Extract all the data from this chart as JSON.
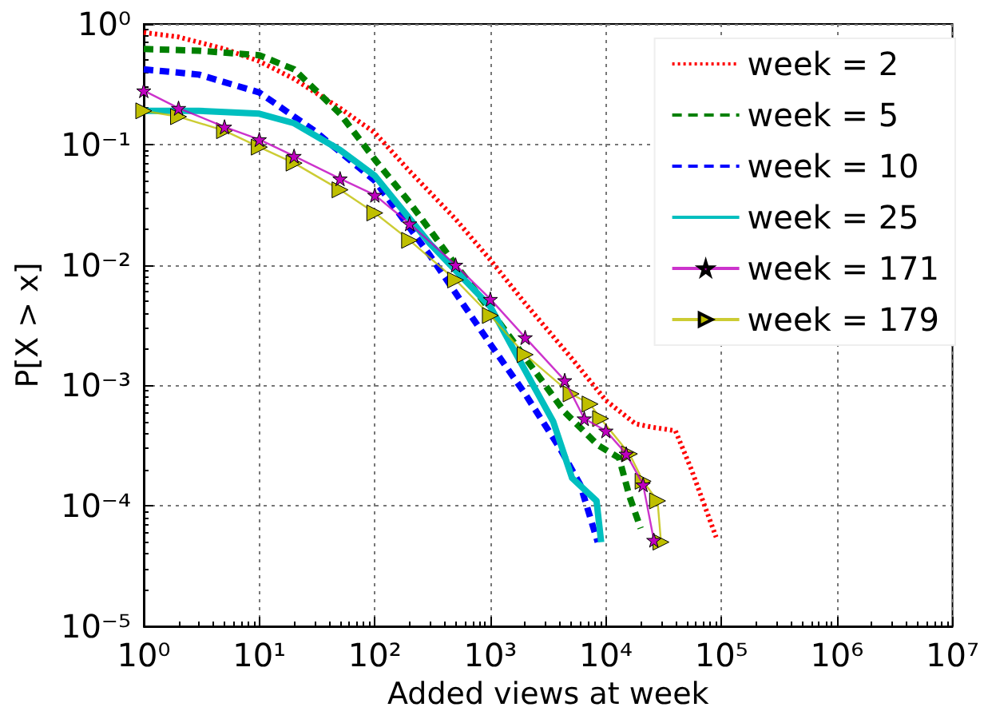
{
  "chart_data": {
    "type": "line",
    "xlabel": "Added views at week",
    "ylabel": "P[X > x]",
    "log": "xy",
    "grid": true,
    "legend": "top right",
    "xlim": [
      1,
      10000000
    ],
    "ylim": [
      1e-05,
      1
    ],
    "xticks": [
      {
        "value": 1,
        "label": "10⁰"
      },
      {
        "value": 10,
        "label": "10¹"
      },
      {
        "value": 100,
        "label": "10²"
      },
      {
        "value": 1000,
        "label": "10³"
      },
      {
        "value": 10000,
        "label": "10⁴"
      },
      {
        "value": 100000,
        "label": "10⁵"
      },
      {
        "value": 1000000,
        "label": "10⁶"
      },
      {
        "value": 10000000,
        "label": "10⁷"
      }
    ],
    "yticks": [
      {
        "value": 1e-05,
        "label": "10⁻⁵"
      },
      {
        "value": 0.0001,
        "label": "10⁻⁴"
      },
      {
        "value": 0.001,
        "label": "10⁻³"
      },
      {
        "value": 0.01,
        "label": "10⁻²"
      },
      {
        "value": 0.1,
        "label": "10⁻¹"
      },
      {
        "value": 1,
        "label": "10⁰"
      }
    ],
    "series": [
      {
        "name": "week = 2",
        "color": "#ff0000",
        "line_style": "dotted",
        "marker": "none",
        "x": [
          1,
          2,
          5,
          10,
          20,
          50,
          100,
          200,
          500,
          1000,
          2000,
          5000,
          10000,
          18000,
          25000,
          40000,
          55000,
          90000
        ],
        "values": [
          0.85,
          0.78,
          0.62,
          0.49,
          0.35,
          0.2,
          0.125,
          0.06,
          0.024,
          0.011,
          0.0048,
          0.0017,
          0.00075,
          0.00048,
          0.00045,
          0.00042,
          0.0002,
          5.5e-05
        ]
      },
      {
        "name": "week = 5",
        "color": "#008000",
        "line_style": "dashed",
        "marker": "none",
        "x": [
          1,
          3,
          10,
          20,
          50,
          100,
          200,
          500,
          1000,
          2000,
          4400,
          8500,
          13000,
          16000,
          20000
        ],
        "values": [
          0.62,
          0.6,
          0.55,
          0.42,
          0.18,
          0.075,
          0.033,
          0.01,
          0.0042,
          0.0017,
          0.0006,
          0.00032,
          0.00025,
          0.00012,
          6.5e-05
        ]
      },
      {
        "name": "week = 10",
        "color": "#0000ff",
        "line_style": "dashed",
        "marker": "none",
        "x": [
          1,
          3,
          10,
          30,
          100,
          300,
          1000,
          2000,
          4000,
          6000,
          8500
        ],
        "values": [
          0.42,
          0.38,
          0.27,
          0.13,
          0.05,
          0.012,
          0.0022,
          0.00085,
          0.0003,
          0.00015,
          5e-05
        ]
      },
      {
        "name": "week = 25",
        "color": "#00bfbf",
        "line_style": "solid",
        "marker": "none",
        "x": [
          1,
          3,
          10,
          20,
          50,
          100,
          300,
          1000,
          1500,
          2500,
          3500,
          5100,
          8300,
          9100
        ],
        "values": [
          0.19,
          0.19,
          0.18,
          0.15,
          0.09,
          0.055,
          0.015,
          0.0045,
          0.0022,
          0.0009,
          0.0005,
          0.00017,
          0.00011,
          5e-05
        ]
      },
      {
        "name": "week = 171",
        "color": "#bf00bf",
        "line_style": "solid",
        "marker": "star",
        "x": [
          1,
          2,
          5,
          10,
          20,
          50,
          100,
          200,
          500,
          1000,
          2000,
          4400,
          6500,
          10000,
          15000,
          21000,
          26000
        ],
        "values": [
          0.28,
          0.2,
          0.14,
          0.11,
          0.08,
          0.052,
          0.038,
          0.022,
          0.01,
          0.0052,
          0.0025,
          0.0011,
          0.00053,
          0.00042,
          0.00027,
          0.00015,
          5.2e-05
        ]
      },
      {
        "name": "week = 179",
        "color": "#bfbf00",
        "line_style": "solid",
        "marker": "triangle",
        "x": [
          1,
          2,
          5,
          10,
          20,
          50,
          100,
          200,
          500,
          1000,
          2000,
          5000,
          7300,
          9000,
          16000,
          21000,
          28000,
          30000
        ],
        "values": [
          0.19,
          0.17,
          0.13,
          0.095,
          0.07,
          0.042,
          0.027,
          0.016,
          0.0075,
          0.0038,
          0.0018,
          0.00085,
          0.0007,
          0.00053,
          0.00027,
          0.00016,
          0.00011,
          5e-05
        ]
      }
    ]
  }
}
